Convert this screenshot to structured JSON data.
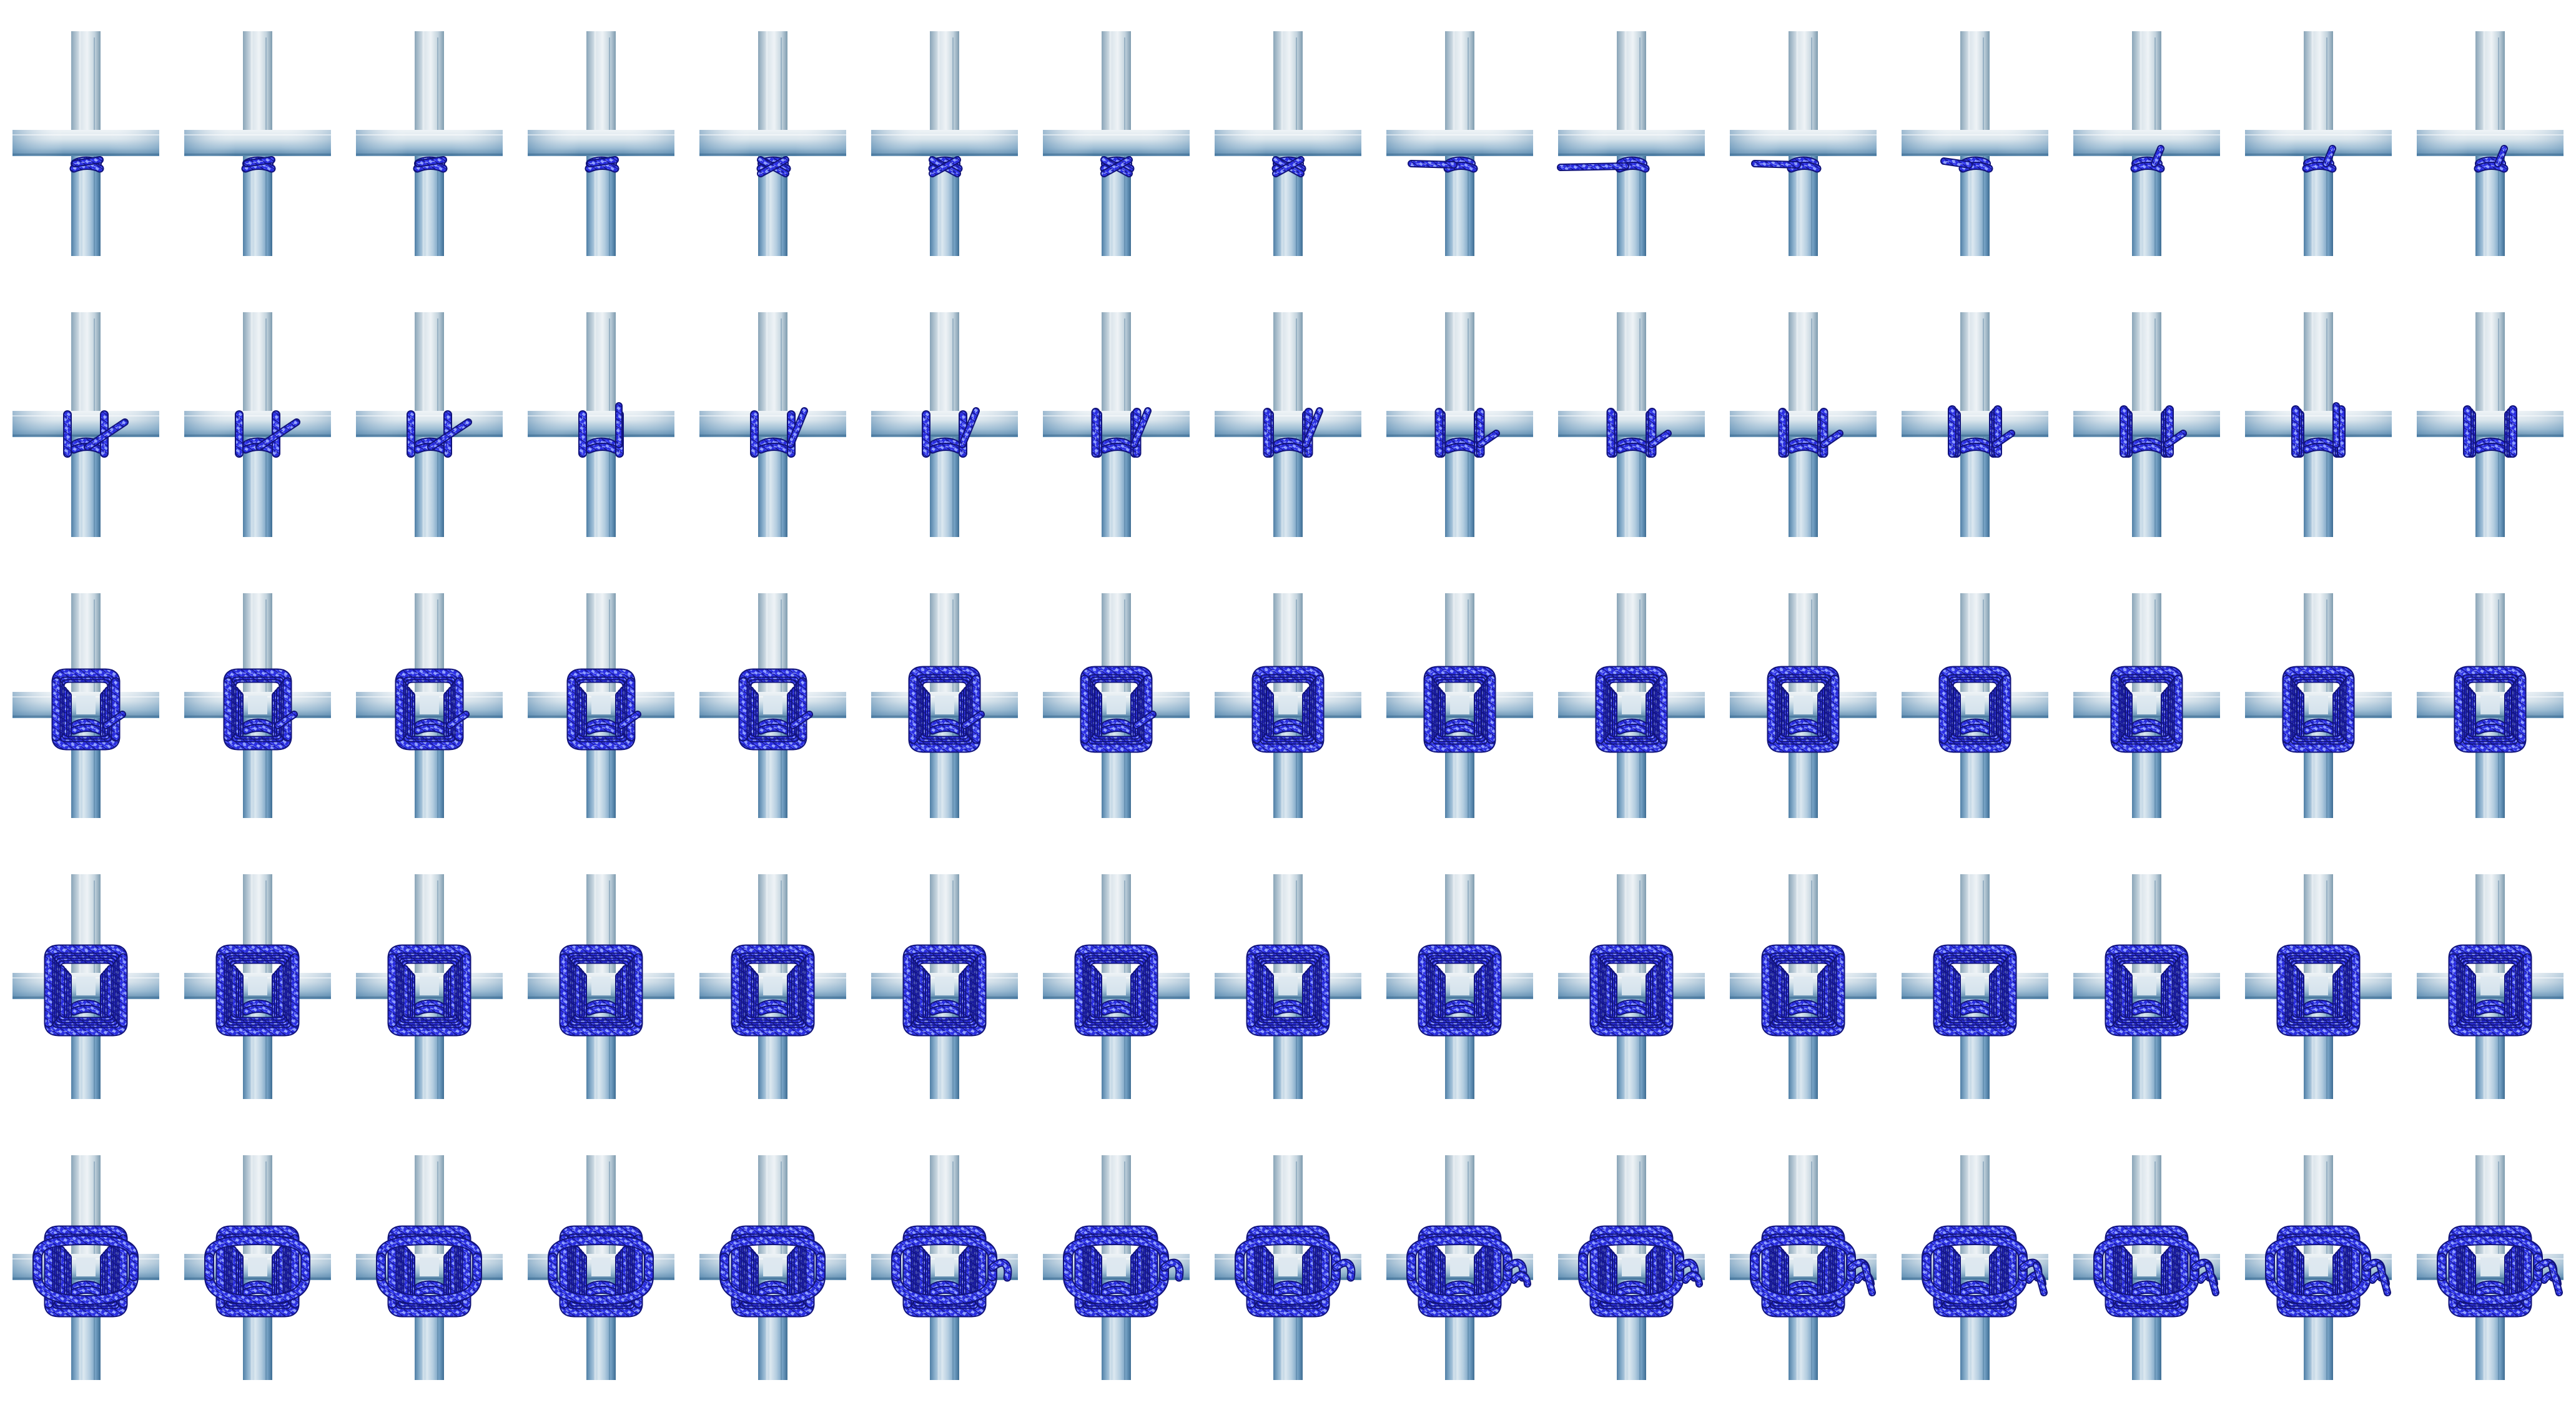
{
  "scene": {
    "subject": "square-lashing-sequence",
    "colors": {
      "background": "#ffffff",
      "pole_light": "#e4edf3",
      "pole_mid": "#a9c6dc",
      "pole_dark": "#5f8fb6",
      "pole_shadow": "#2f5f86",
      "rope_main": "#2a2ee0",
      "rope_highlight": "#8fa0ff",
      "rope_dark": "#11137a"
    }
  },
  "frames": [
    {
      "stage": 1,
      "turns": 1,
      "frap": 0,
      "tail": "short"
    },
    {
      "stage": 1,
      "turns": 1,
      "frap": 0,
      "tail": "short"
    },
    {
      "stage": 1,
      "turns": 1,
      "frap": 0,
      "tail": "short"
    },
    {
      "stage": 1,
      "turns": 1,
      "frap": 0,
      "tail": "short"
    },
    {
      "stage": 1,
      "turns": 1,
      "frap": 0,
      "tail": "cross"
    },
    {
      "stage": 1,
      "turns": 1,
      "frap": 0,
      "tail": "cross"
    },
    {
      "stage": 1,
      "turns": 1,
      "frap": 0,
      "tail": "cross"
    },
    {
      "stage": 1,
      "turns": 1,
      "frap": 0,
      "tail": "cross"
    },
    {
      "stage": 1,
      "turns": 1,
      "frap": 0,
      "tail": "left-long"
    },
    {
      "stage": 1,
      "turns": 1,
      "frap": 0,
      "tail": "left-longer"
    },
    {
      "stage": 1,
      "turns": 1,
      "frap": 0,
      "tail": "left-long"
    },
    {
      "stage": 1,
      "turns": 1,
      "frap": 0,
      "tail": "left-mid"
    },
    {
      "stage": 1,
      "turns": 1,
      "frap": 0,
      "tail": "up-short"
    },
    {
      "stage": 1,
      "turns": 1,
      "frap": 0,
      "tail": "up-short"
    },
    {
      "stage": 1,
      "turns": 1,
      "frap": 0,
      "tail": "up-short"
    },
    {
      "stage": 2,
      "turns": 1,
      "frap": 0,
      "tail": "diag-right"
    },
    {
      "stage": 2,
      "turns": 1,
      "frap": 0,
      "tail": "diag-right"
    },
    {
      "stage": 2,
      "turns": 1,
      "frap": 0,
      "tail": "diag-right"
    },
    {
      "stage": 2,
      "turns": 1,
      "frap": 0,
      "tail": "up"
    },
    {
      "stage": 2,
      "turns": 1,
      "frap": 0,
      "tail": "up-right"
    },
    {
      "stage": 2,
      "turns": 1,
      "frap": 0,
      "tail": "up-right"
    },
    {
      "stage": 2,
      "turns": 2,
      "frap": 0,
      "tail": "up-right"
    },
    {
      "stage": 2,
      "turns": 2,
      "frap": 0,
      "tail": "up-right"
    },
    {
      "stage": 2,
      "turns": 2,
      "frap": 0,
      "tail": "right"
    },
    {
      "stage": 2,
      "turns": 2,
      "frap": 0,
      "tail": "right"
    },
    {
      "stage": 2,
      "turns": 2,
      "frap": 0,
      "tail": "right"
    },
    {
      "stage": 2,
      "turns": 3,
      "frap": 0,
      "tail": "right"
    },
    {
      "stage": 2,
      "turns": 3,
      "frap": 0,
      "tail": "right"
    },
    {
      "stage": 2,
      "turns": 3,
      "frap": 0,
      "tail": "up"
    },
    {
      "stage": 2,
      "turns": 3,
      "frap": 0,
      "tail": "none"
    },
    {
      "stage": 3,
      "turns": 3,
      "frap": 1,
      "tail": "right"
    },
    {
      "stage": 3,
      "turns": 3,
      "frap": 1,
      "tail": "right"
    },
    {
      "stage": 3,
      "turns": 3,
      "frap": 1,
      "tail": "right"
    },
    {
      "stage": 3,
      "turns": 3,
      "frap": 1,
      "tail": "right"
    },
    {
      "stage": 3,
      "turns": 3,
      "frap": 1,
      "tail": "right"
    },
    {
      "stage": 3,
      "turns": 4,
      "frap": 1,
      "tail": "right"
    },
    {
      "stage": 3,
      "turns": 4,
      "frap": 1,
      "tail": "right"
    },
    {
      "stage": 3,
      "turns": 4,
      "frap": 1,
      "tail": "none"
    },
    {
      "stage": 3,
      "turns": 4,
      "frap": 1,
      "tail": "none"
    },
    {
      "stage": 3,
      "turns": 4,
      "frap": 1,
      "tail": "none"
    },
    {
      "stage": 3,
      "turns": 4,
      "frap": 1,
      "tail": "none"
    },
    {
      "stage": 3,
      "turns": 4,
      "frap": 1,
      "tail": "none"
    },
    {
      "stage": 3,
      "turns": 4,
      "frap": 2,
      "tail": "none"
    },
    {
      "stage": 3,
      "turns": 4,
      "frap": 2,
      "tail": "none"
    },
    {
      "stage": 3,
      "turns": 4,
      "frap": 2,
      "tail": "none"
    },
    {
      "stage": 4,
      "turns": 5,
      "frap": 2,
      "tail": "none"
    },
    {
      "stage": 4,
      "turns": 5,
      "frap": 2,
      "tail": "none"
    },
    {
      "stage": 4,
      "turns": 5,
      "frap": 2,
      "tail": "none"
    },
    {
      "stage": 4,
      "turns": 5,
      "frap": 2,
      "tail": "none"
    },
    {
      "stage": 4,
      "turns": 5,
      "frap": 2,
      "tail": "none"
    },
    {
      "stage": 4,
      "turns": 5,
      "frap": 2,
      "tail": "none"
    },
    {
      "stage": 4,
      "turns": 5,
      "frap": 2,
      "tail": "none"
    },
    {
      "stage": 4,
      "turns": 5,
      "frap": 2,
      "tail": "none"
    },
    {
      "stage": 4,
      "turns": 5,
      "frap": 2,
      "tail": "none"
    },
    {
      "stage": 4,
      "turns": 5,
      "frap": 2,
      "tail": "none"
    },
    {
      "stage": 4,
      "turns": 5,
      "frap": 3,
      "tail": "none"
    },
    {
      "stage": 4,
      "turns": 5,
      "frap": 3,
      "tail": "none"
    },
    {
      "stage": 4,
      "turns": 5,
      "frap": 3,
      "tail": "none"
    },
    {
      "stage": 4,
      "turns": 5,
      "frap": 3,
      "tail": "none"
    },
    {
      "stage": 4,
      "turns": 5,
      "frap": 3,
      "tail": "none"
    },
    {
      "stage": 5,
      "turns": 6,
      "frap": 3,
      "tail": "none"
    },
    {
      "stage": 5,
      "turns": 6,
      "frap": 3,
      "tail": "none"
    },
    {
      "stage": 5,
      "turns": 6,
      "frap": 3,
      "tail": "none"
    },
    {
      "stage": 5,
      "turns": 6,
      "frap": 3,
      "tail": "none"
    },
    {
      "stage": 5,
      "turns": 6,
      "frap": 3,
      "tail": "none"
    },
    {
      "stage": 5,
      "turns": 6,
      "frap": 3,
      "tail": "hitch-1"
    },
    {
      "stage": 5,
      "turns": 6,
      "frap": 3,
      "tail": "hitch-1"
    },
    {
      "stage": 5,
      "turns": 6,
      "frap": 3,
      "tail": "hitch-1"
    },
    {
      "stage": 5,
      "turns": 6,
      "frap": 3,
      "tail": "hitch-2"
    },
    {
      "stage": 5,
      "turns": 6,
      "frap": 3,
      "tail": "hitch-2"
    },
    {
      "stage": 5,
      "turns": 6,
      "frap": 3,
      "tail": "hitch-3"
    },
    {
      "stage": 5,
      "turns": 6,
      "frap": 3,
      "tail": "hitch-3"
    },
    {
      "stage": 5,
      "turns": 6,
      "frap": 3,
      "tail": "hitch-3"
    },
    {
      "stage": 5,
      "turns": 6,
      "frap": 3,
      "tail": "hitch-3"
    },
    {
      "stage": 5,
      "turns": 6,
      "frap": 3,
      "tail": "hitch-3"
    }
  ]
}
